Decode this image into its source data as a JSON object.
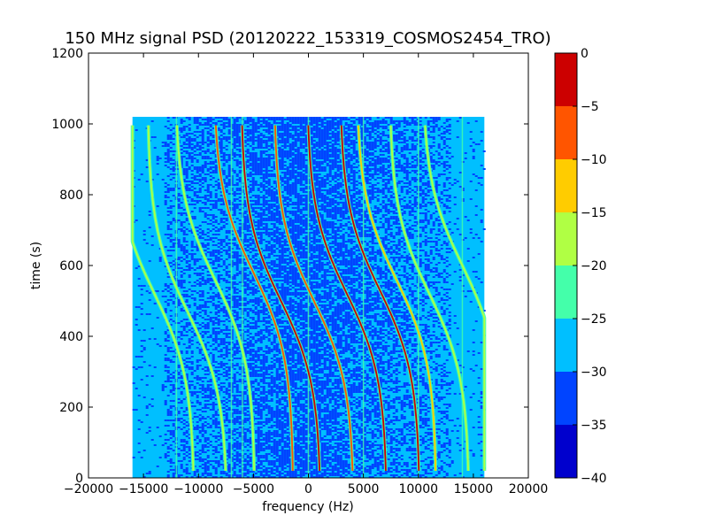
{
  "chart_data": {
    "type": "heatmap",
    "title": "150 MHz signal PSD (20120222_153319_COSMOS2454_TRO)",
    "xlabel": "frequency (Hz)",
    "ylabel": "time (s)",
    "xlim": [
      -20000,
      20000
    ],
    "ylim": [
      0,
      1200
    ],
    "x_ticks": [
      -20000,
      -15000,
      -10000,
      -5000,
      0,
      5000,
      10000,
      15000,
      20000
    ],
    "y_ticks": [
      0,
      200,
      400,
      600,
      800,
      1000,
      1200
    ],
    "data_extent": {
      "x": [
        -16000,
        16000
      ],
      "y": [
        0,
        1020
      ]
    },
    "background_level_dB": -28,
    "noise_level_dB": -33,
    "colormap": "jet",
    "colorbar": {
      "ticks": [
        0,
        -5,
        -10,
        -15,
        -20,
        -25,
        -30,
        -35,
        -40
      ],
      "levels": [
        {
          "range": [
            -40,
            -35
          ],
          "color": "#0000cd"
        },
        {
          "range": [
            -35,
            -30
          ],
          "color": "#0044ff"
        },
        {
          "range": [
            -30,
            -25
          ],
          "color": "#00bfff"
        },
        {
          "range": [
            -25,
            -20
          ],
          "color": "#44ffaa"
        },
        {
          "range": [
            -20,
            -15
          ],
          "color": "#b0ff44"
        },
        {
          "range": [
            -15,
            -10
          ],
          "color": "#ffcc00"
        },
        {
          "range": [
            -10,
            -5
          ],
          "color": "#ff5500"
        },
        {
          "range": [
            -5,
            0
          ],
          "color": "#cc0000"
        }
      ]
    },
    "vertical_lines_hz": [
      -12000,
      -7000,
      -6000,
      0,
      5000,
      10000,
      14000
    ],
    "doppler_tracks": [
      {
        "center_hz": -14000,
        "center_time_s": 520,
        "peak_dB": -17
      },
      {
        "center_hz": -11000,
        "center_time_s": 470,
        "peak_dB": -17
      },
      {
        "center_hz": -8500,
        "center_time_s": 560,
        "peak_dB": -18
      },
      {
        "center_hz": -5000,
        "center_time_s": 580,
        "peak_dB": -6
      },
      {
        "center_hz": -2500,
        "center_time_s": 500,
        "peak_dB": -3
      },
      {
        "center_hz": 500,
        "center_time_s": 500,
        "peak_dB": -8
      },
      {
        "center_hz": 3500,
        "center_time_s": 520,
        "peak_dB": -4
      },
      {
        "center_hz": 6500,
        "center_time_s": 530,
        "peak_dB": -4
      },
      {
        "center_hz": 8000,
        "center_time_s": 560,
        "peak_dB": -12
      },
      {
        "center_hz": 11000,
        "center_time_s": 520,
        "peak_dB": -16
      },
      {
        "center_hz": 14000,
        "center_time_s": 600,
        "peak_dB": -18
      }
    ]
  }
}
